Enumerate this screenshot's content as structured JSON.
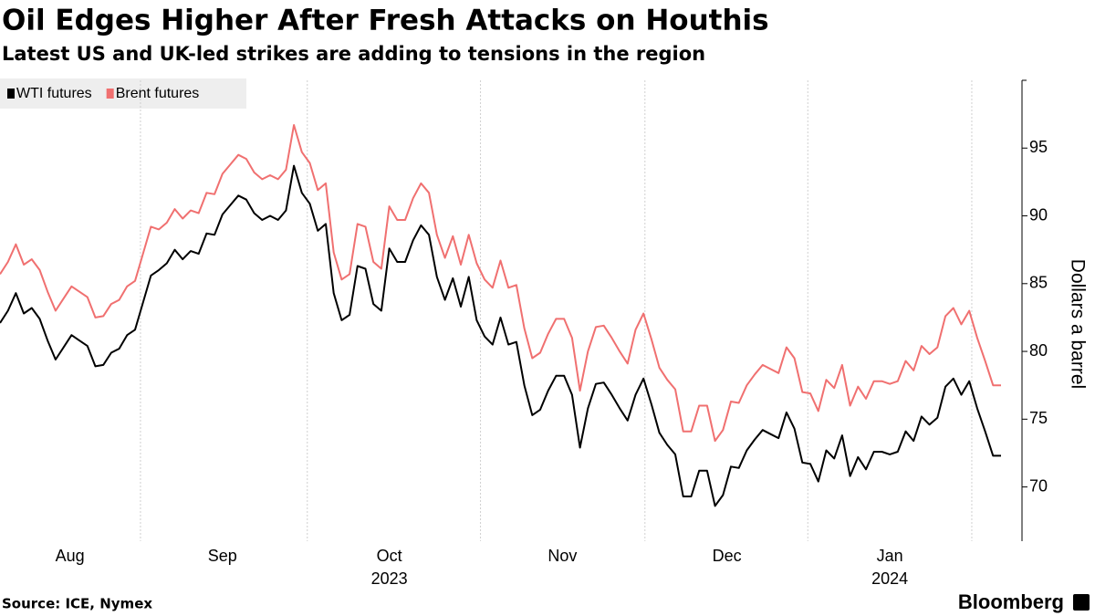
{
  "chart_data": {
    "type": "line",
    "title": "Oil Edges Higher After Fresh Attacks on Houthis",
    "subtitle": "Latest US and UK-led strikes are adding to tensions in the region",
    "y_label": "Dollars a barrel",
    "source": "Source: ICE, Nymex",
    "brand": "Bloomberg",
    "ylim": [
      66,
      100
    ],
    "yticks": [
      70,
      75,
      80,
      85,
      90,
      95
    ],
    "xticks": [
      {
        "value": 8.8,
        "label": "Aug"
      },
      {
        "value": 28,
        "label": "Sep"
      },
      {
        "value": 49,
        "label": "Oct",
        "sublabel": "2023"
      },
      {
        "value": 70.8,
        "label": "Nov"
      },
      {
        "value": 91.5,
        "label": "Dec"
      },
      {
        "value": 112,
        "label": "Jan",
        "sublabel": "2024"
      }
    ],
    "legend": "top-left",
    "series": [
      {
        "name": "WTI futures",
        "color": "#000000",
        "values": [
          82.1,
          83.0,
          84.3,
          82.8,
          83.2,
          82.4,
          80.8,
          79.4,
          80.3,
          81.2,
          80.8,
          80.4,
          78.9,
          79.0,
          79.9,
          80.2,
          81.2,
          81.6,
          83.6,
          85.6,
          86.0,
          86.5,
          87.5,
          86.8,
          87.4,
          87.2,
          88.7,
          88.6,
          90.1,
          90.8,
          91.5,
          91.2,
          90.2,
          89.7,
          90.0,
          89.7,
          90.4,
          93.7,
          91.7,
          90.9,
          88.9,
          89.4,
          84.3,
          82.3,
          82.7,
          86.3,
          86.1,
          83.5,
          83.0,
          87.6,
          86.6,
          86.6,
          88.2,
          89.3,
          88.6,
          85.5,
          83.8,
          85.4,
          83.3,
          85.5,
          82.3,
          81.1,
          80.5,
          82.5,
          80.5,
          80.7,
          77.5,
          75.3,
          75.7,
          77.1,
          78.2,
          78.2,
          76.8,
          72.9,
          75.8,
          77.6,
          77.7,
          76.8,
          75.8,
          74.9,
          76.8,
          78.0,
          76.1,
          74.0,
          73.1,
          72.4,
          69.3,
          69.3,
          71.2,
          71.2,
          68.6,
          69.4,
          71.5,
          71.4,
          72.7,
          73.5,
          74.2,
          73.9,
          73.6,
          75.5,
          74.3,
          71.8,
          71.7,
          70.4,
          72.7,
          72.1,
          73.8,
          70.8,
          72.2,
          71.3,
          72.6,
          72.6,
          72.4,
          72.6,
          74.1,
          73.4,
          75.2,
          74.6,
          75.1,
          77.4,
          78.0,
          76.8,
          77.8,
          75.8,
          74.1,
          72.3,
          72.3
        ]
      },
      {
        "name": "Brent futures",
        "color": "#f07070",
        "values": [
          85.7,
          86.6,
          87.9,
          86.4,
          86.8,
          86.0,
          84.4,
          83.0,
          83.9,
          84.8,
          84.4,
          84.0,
          82.5,
          82.6,
          83.5,
          83.8,
          84.8,
          85.2,
          87.2,
          89.2,
          89.0,
          89.5,
          90.5,
          89.8,
          90.4,
          90.2,
          91.7,
          91.6,
          93.1,
          93.8,
          94.5,
          94.2,
          93.2,
          92.7,
          93.0,
          92.7,
          93.4,
          96.7,
          94.7,
          93.9,
          91.9,
          92.4,
          87.3,
          85.3,
          85.7,
          89.4,
          89.2,
          86.6,
          86.1,
          90.7,
          89.7,
          89.7,
          91.3,
          92.4,
          91.7,
          88.6,
          86.9,
          88.5,
          86.4,
          88.6,
          86.5,
          85.3,
          84.7,
          86.7,
          84.7,
          84.9,
          81.7,
          79.5,
          79.9,
          81.3,
          82.4,
          82.4,
          81.0,
          77.1,
          80.0,
          81.8,
          81.9,
          81.0,
          80.0,
          79.1,
          81.6,
          82.8,
          80.9,
          78.8,
          77.9,
          77.2,
          74.1,
          74.1,
          76.0,
          76.0,
          73.4,
          74.2,
          76.3,
          76.2,
          77.5,
          78.3,
          79.0,
          78.7,
          78.4,
          80.3,
          79.5,
          77.0,
          76.9,
          75.6,
          77.9,
          77.3,
          79.0,
          76.0,
          77.4,
          76.5,
          77.8,
          77.8,
          77.6,
          77.8,
          79.3,
          78.6,
          80.4,
          79.8,
          80.3,
          82.6,
          83.2,
          82.0,
          83.0,
          81.0,
          79.3,
          77.5,
          77.5
        ]
      }
    ]
  }
}
